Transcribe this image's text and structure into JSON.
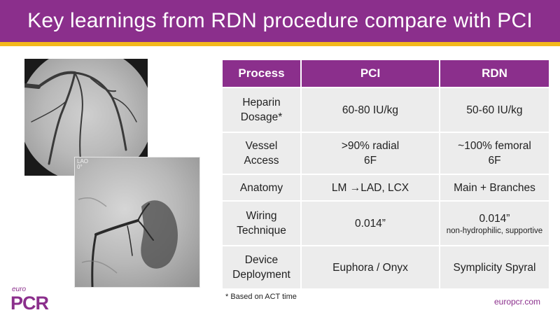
{
  "slide": {
    "title": "Key learnings from RDN procedure compare with PCI",
    "footnote": "* Based on ACT time",
    "website": "europcr.com",
    "logo": {
      "small": "euro",
      "main": "PCR"
    },
    "image2_label": [
      "LAO",
      "0°"
    ]
  },
  "table": {
    "headers": [
      "Process",
      "PCI",
      "RDN"
    ],
    "rows": [
      {
        "process": [
          "Heparin",
          "Dosage*"
        ],
        "pci": [
          "60-80 IU/kg"
        ],
        "rdn": [
          "50-60 IU/kg"
        ],
        "rdn_note": ""
      },
      {
        "process": [
          "Vessel",
          "Access"
        ],
        "pci": [
          ">90% radial",
          "6F"
        ],
        "rdn": [
          "~100% femoral",
          "6F"
        ],
        "rdn_note": ""
      },
      {
        "process": [
          "Anatomy"
        ],
        "pci": [
          "LM →LAD, LCX"
        ],
        "rdn": [
          "Main + Branches"
        ],
        "rdn_note": ""
      },
      {
        "process": [
          "Wiring",
          "Technique"
        ],
        "pci": [
          "0.014”"
        ],
        "rdn": [
          "0.014”"
        ],
        "rdn_note": "non-hydrophilic, supportive"
      },
      {
        "process": [
          "Device",
          "Deployment"
        ],
        "pci": [
          "Euphora / Onyx"
        ],
        "rdn": [
          "Symplicity Spyral"
        ],
        "rdn_note": ""
      }
    ]
  },
  "colors": {
    "brand_purple": "#8b2f8c",
    "accent_yellow": "#f3b81c",
    "cell_gray": "#ececec"
  }
}
